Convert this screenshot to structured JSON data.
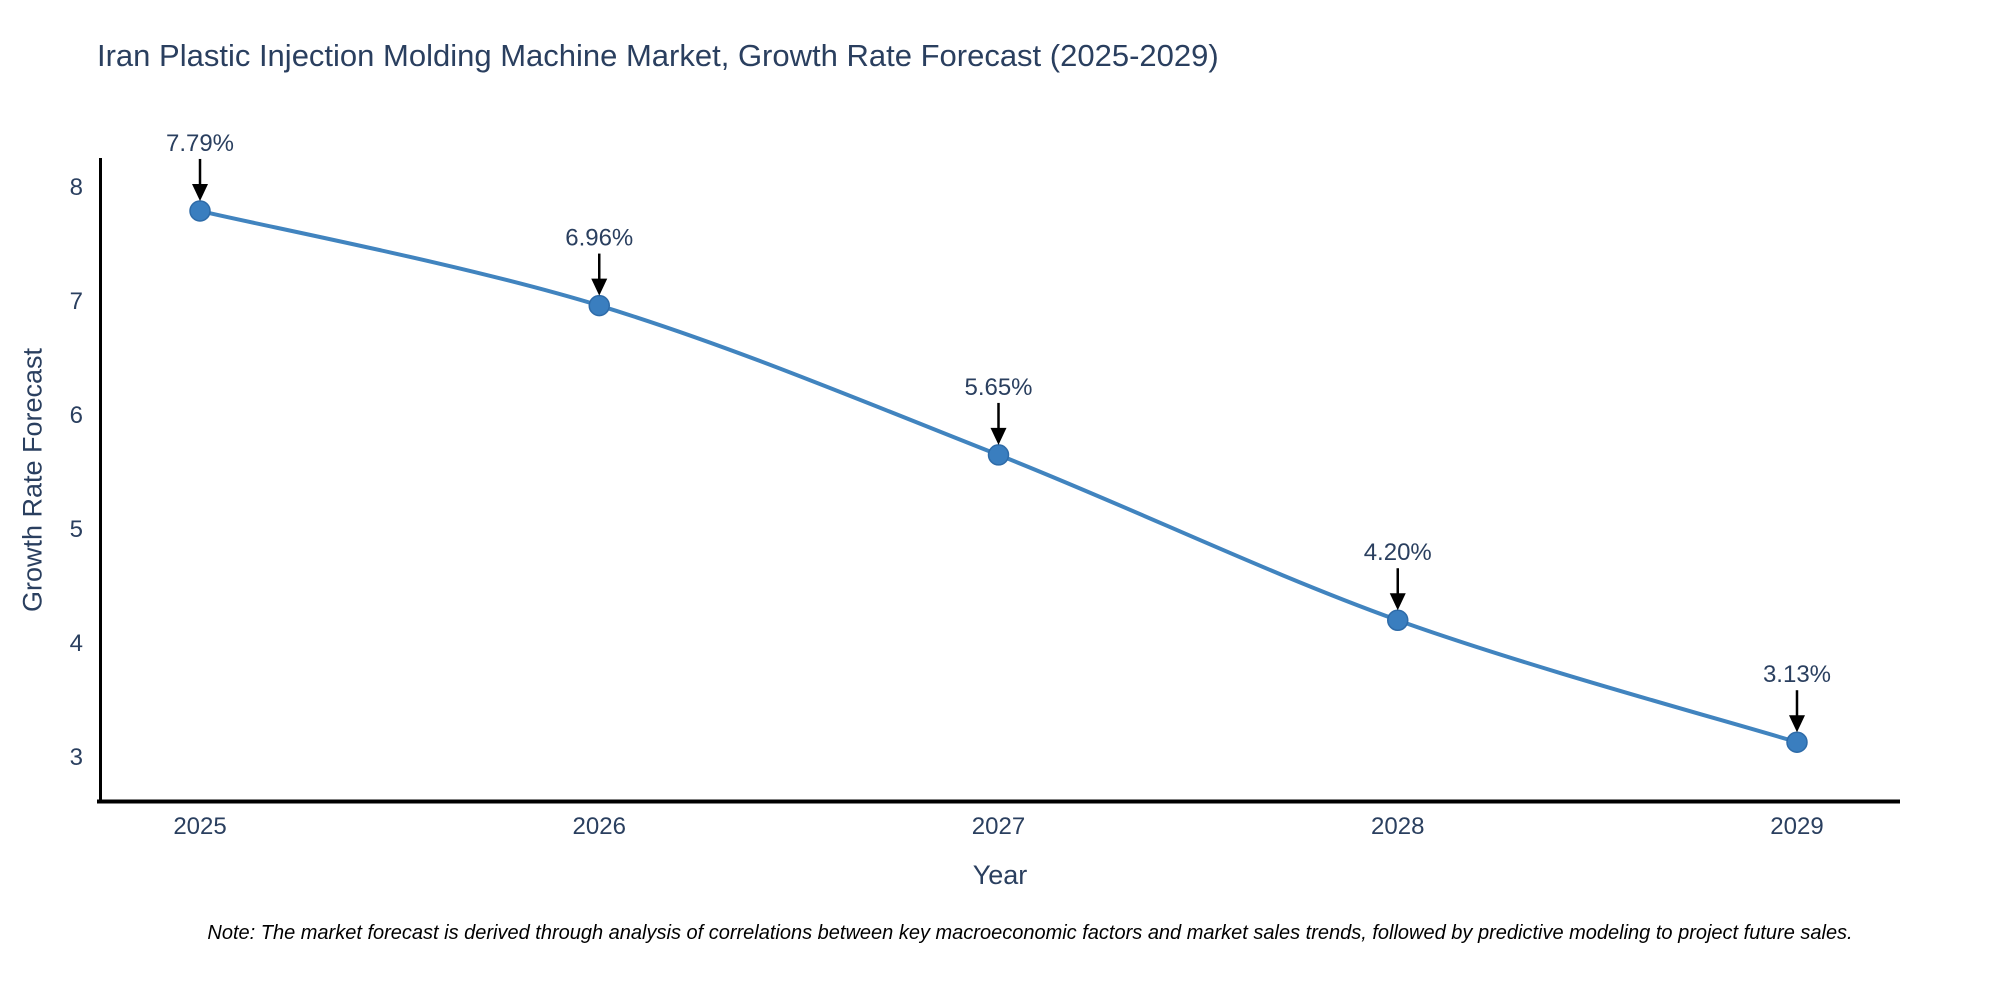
{
  "figure": {
    "title": "Iran Plastic Injection Molding Machine Market, Growth Rate Forecast (2025-2029)",
    "note": "Note: The market forecast is derived through analysis of correlations between key macroeconomic factors and market sales trends, followed by predictive modeling to project future sales."
  },
  "chart_data": {
    "type": "line",
    "title": "Iran Plastic Injection Molding Machine Market, Growth Rate Forecast (2025-2029)",
    "xlabel": "Year",
    "ylabel": "Growth Rate Forecast",
    "x": [
      2025,
      2026,
      2027,
      2028,
      2029
    ],
    "y": [
      7.79,
      6.96,
      5.65,
      4.2,
      3.13
    ],
    "point_labels": [
      "7.79%",
      "6.96%",
      "5.65%",
      "4.20%",
      "3.13%"
    ],
    "xticks": [
      2025,
      2026,
      2027,
      2028,
      2029
    ],
    "yticks": [
      3,
      4,
      5,
      6,
      7,
      8
    ],
    "xlim": [
      2024.747,
      2029.258
    ],
    "ylim": [
      2.623,
      8.237
    ],
    "grid": false,
    "legend": "none",
    "line_shape": "spline",
    "colors": {
      "line": "#4184bf",
      "marker": "#3a7ebf",
      "marker_edge": "#2e6ba8",
      "text": "#2a3f5f",
      "arrow": "#000000",
      "axis": "#000000"
    }
  }
}
